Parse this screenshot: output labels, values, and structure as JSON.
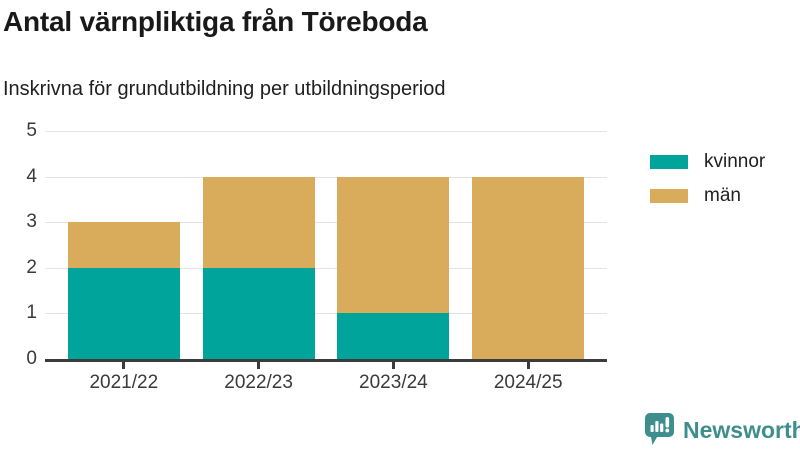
{
  "header": {
    "title": "Antal värnpliktiga från Töreboda",
    "subtitle": "Inskrivna för grundutbildning per utbildningsperiod"
  },
  "chart_data": {
    "type": "bar",
    "stacked": true,
    "title": "Antal värnpliktiga från Töreboda",
    "subtitle": "Inskrivna för grundutbildning per utbildningsperiod",
    "categories": [
      "2021/22",
      "2022/23",
      "2023/24",
      "2024/25"
    ],
    "series": [
      {
        "name": "kvinnor",
        "color": "#00a49b",
        "values": [
          2,
          2,
          1,
          0
        ]
      },
      {
        "name": "män",
        "color": "#d9ac5c",
        "values": [
          1,
          2,
          3,
          4
        ]
      }
    ],
    "totals": [
      3,
      4,
      4,
      4
    ],
    "xlabel": "",
    "ylabel": "",
    "ylim": [
      0,
      5
    ],
    "yticks": [
      0,
      1,
      2,
      3,
      4,
      5
    ],
    "grid": true,
    "legend_position": "right"
  },
  "colors": {
    "kvinnor": "#00a49b",
    "man": "#d9ac5c",
    "axis_line": "#3b3b3b",
    "gridline": "#e3e3e3",
    "axis_text": "#3a3a3a",
    "title_text": "#191919",
    "logo_teal": "#3e8e8d"
  },
  "branding": {
    "logo_text": "Newsworthy"
  }
}
